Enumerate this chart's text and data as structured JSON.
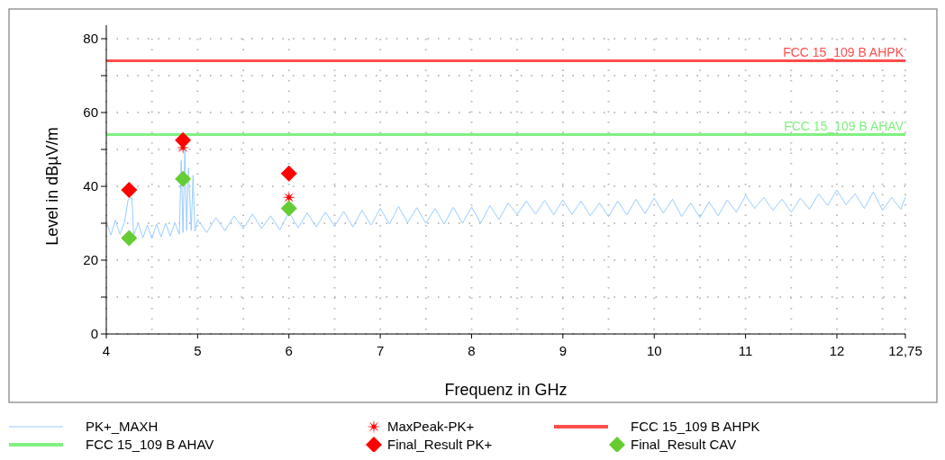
{
  "chart_data": {
    "type": "line",
    "xlabel": "Frequenz in GHz",
    "ylabel": "Level in dBµV/m",
    "xlim": [
      4,
      12.75
    ],
    "ylim": [
      0,
      80
    ],
    "xticks": [
      4,
      {
        "value": 4.5,
        "label": null
      },
      5,
      {
        "value": 5.5,
        "label": null
      },
      6,
      {
        "value": 6.5,
        "label": null
      },
      7,
      {
        "value": 7.5,
        "label": null
      },
      8,
      {
        "value": 8.5,
        "label": null
      },
      9,
      {
        "value": 9.5,
        "label": null
      },
      10,
      {
        "value": 10.5,
        "label": null
      },
      11,
      {
        "value": 11.5,
        "label": null
      },
      12,
      {
        "value": 12.5,
        "label": null
      },
      {
        "value": 12.75,
        "label": "12,75"
      }
    ],
    "yticks": [
      0,
      {
        "value": 10,
        "label": null
      },
      20,
      {
        "value": 30,
        "label": null
      },
      40,
      {
        "value": 50,
        "label": null
      },
      60,
      {
        "value": 70,
        "label": null
      },
      80
    ],
    "grid": true,
    "legend": "bottom",
    "series": [
      {
        "name": "PK+_MAXH",
        "color": "#99ccff",
        "marker": "none",
        "x": [
          4.0,
          4.05,
          4.1,
          4.15,
          4.2,
          4.24,
          4.28,
          4.3,
          4.35,
          4.4,
          4.45,
          4.5,
          4.55,
          4.6,
          4.65,
          4.7,
          4.75,
          4.8,
          4.82,
          4.84,
          4.86,
          4.88,
          4.9,
          4.93,
          4.95,
          4.97,
          5.0,
          5.1,
          5.2,
          5.3,
          5.4,
          5.5,
          5.6,
          5.7,
          5.8,
          5.9,
          6.0,
          6.1,
          6.2,
          6.3,
          6.4,
          6.5,
          6.6,
          6.7,
          6.8,
          6.9,
          7.0,
          7.1,
          7.2,
          7.3,
          7.4,
          7.5,
          7.6,
          7.7,
          7.8,
          7.9,
          8.0,
          8.1,
          8.2,
          8.3,
          8.4,
          8.5,
          8.6,
          8.7,
          8.8,
          8.9,
          9.0,
          9.1,
          9.2,
          9.3,
          9.4,
          9.5,
          9.6,
          9.7,
          9.8,
          9.9,
          10.0,
          10.1,
          10.2,
          10.3,
          10.4,
          10.5,
          10.6,
          10.7,
          10.8,
          10.9,
          11.0,
          11.1,
          11.2,
          11.3,
          11.4,
          11.5,
          11.6,
          11.7,
          11.8,
          11.9,
          12.0,
          12.1,
          12.2,
          12.3,
          12.4,
          12.5,
          12.6,
          12.7,
          12.75
        ],
        "values": [
          30.5,
          26.8,
          30.8,
          27.0,
          30.3,
          36.5,
          37.0,
          26.8,
          30.0,
          26.0,
          29.5,
          25.8,
          29.8,
          26.3,
          30.0,
          26.5,
          30.2,
          27.0,
          47.0,
          27.5,
          50.0,
          28.0,
          45.0,
          28.0,
          43.0,
          27.8,
          31.0,
          27.5,
          31.5,
          28.0,
          32.0,
          28.5,
          32.5,
          28.6,
          32.0,
          28.2,
          33.0,
          28.8,
          32.8,
          29.0,
          33.0,
          29.2,
          33.2,
          29.0,
          33.5,
          29.5,
          34.0,
          29.8,
          34.5,
          30.2,
          34.2,
          30.0,
          34.0,
          29.8,
          34.3,
          30.0,
          34.4,
          30.0,
          34.8,
          31.0,
          35.5,
          32.4,
          36.0,
          32.5,
          36.2,
          32.3,
          36.3,
          32.4,
          36.0,
          32.0,
          35.5,
          31.8,
          36.0,
          32.3,
          36.5,
          32.6,
          36.8,
          32.7,
          36.5,
          31.8,
          35.5,
          31.5,
          35.8,
          32.0,
          36.3,
          33.0,
          37.5,
          34.0,
          37.0,
          33.5,
          36.5,
          33.0,
          36.8,
          33.8,
          38.0,
          34.8,
          39.0,
          35.0,
          38.0,
          34.0,
          38.5,
          33.5,
          37.0,
          33.8,
          37.0
        ]
      },
      {
        "name": "MaxPeak-PK+",
        "type": "scatter",
        "color": "#ff0000",
        "marker": "star",
        "x": [
          4.84,
          6.0
        ],
        "values": [
          50.5,
          37
        ]
      },
      {
        "name": "FCC 15_109 B AHPK",
        "type": "line",
        "color": "#ff4d4d",
        "marker": "none",
        "x": [
          4,
          12.75
        ],
        "values": [
          74,
          74
        ]
      },
      {
        "name": "FCC 15_109 B AHAV",
        "type": "line",
        "color": "#80f080",
        "marker": "none",
        "x": [
          4,
          12.75
        ],
        "values": [
          54,
          54
        ]
      },
      {
        "name": "Final_Result PK+",
        "type": "scatter",
        "color": "#ff0000",
        "marker": "diamond",
        "x": [
          4.25,
          4.84,
          6.0
        ],
        "values": [
          39,
          52.5,
          43.5
        ]
      },
      {
        "name": "Final_Result CAV",
        "type": "scatter",
        "color": "#66cc33",
        "marker": "diamond",
        "x": [
          4.25,
          4.84,
          6.0
        ],
        "values": [
          26,
          42,
          34
        ]
      }
    ]
  }
}
